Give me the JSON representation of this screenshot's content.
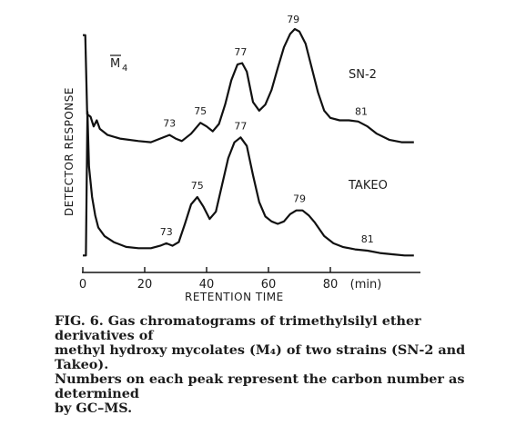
{
  "chart_data": {
    "type": "line",
    "xlabel": "RETENTION TIME",
    "x_unit": "(min)",
    "ylabel": "DETECTOR RESPONSE",
    "panel_label_main": "M",
    "panel_label_sub": "4",
    "xticks": [
      0,
      20,
      40,
      60,
      80
    ],
    "xlim": [
      0,
      107
    ],
    "series": [
      {
        "name": "SN-2",
        "peaks": [
          {
            "label": "73",
            "x": 28
          },
          {
            "label": "75",
            "x": 38
          },
          {
            "label": "77",
            "x": 51
          },
          {
            "label": "79",
            "x": 68
          },
          {
            "label": "81",
            "x": 90
          }
        ],
        "points": [
          [
            0,
            0.95
          ],
          [
            0.8,
            0.95
          ],
          [
            1.4,
            0.3
          ],
          [
            2.5,
            0.28
          ],
          [
            3.5,
            0.2
          ],
          [
            4.5,
            0.25
          ],
          [
            5.5,
            0.18
          ],
          [
            8,
            0.13
          ],
          [
            12,
            0.1
          ],
          [
            18,
            0.08
          ],
          [
            22,
            0.07
          ],
          [
            25,
            0.1
          ],
          [
            28,
            0.13
          ],
          [
            30,
            0.1
          ],
          [
            32,
            0.08
          ],
          [
            35,
            0.14
          ],
          [
            38,
            0.23
          ],
          [
            40,
            0.2
          ],
          [
            42,
            0.16
          ],
          [
            44,
            0.22
          ],
          [
            46,
            0.38
          ],
          [
            48,
            0.58
          ],
          [
            50,
            0.71
          ],
          [
            51.5,
            0.72
          ],
          [
            53,
            0.65
          ],
          [
            55,
            0.4
          ],
          [
            57,
            0.33
          ],
          [
            59,
            0.38
          ],
          [
            61,
            0.5
          ],
          [
            63,
            0.68
          ],
          [
            65,
            0.85
          ],
          [
            67,
            0.96
          ],
          [
            68.5,
            1.0
          ],
          [
            70,
            0.98
          ],
          [
            72,
            0.88
          ],
          [
            74,
            0.68
          ],
          [
            76,
            0.48
          ],
          [
            78,
            0.33
          ],
          [
            80,
            0.27
          ],
          [
            83,
            0.25
          ],
          [
            86,
            0.25
          ],
          [
            89,
            0.24
          ],
          [
            92,
            0.2
          ],
          [
            95,
            0.14
          ],
          [
            99,
            0.09
          ],
          [
            103,
            0.07
          ],
          [
            107,
            0.07
          ]
        ]
      },
      {
        "name": "TAKEO",
        "peaks": [
          {
            "label": "73",
            "x": 27
          },
          {
            "label": "75",
            "x": 37
          },
          {
            "label": "77",
            "x": 51
          },
          {
            "label": "79",
            "x": 70
          },
          {
            "label": "81",
            "x": 92
          }
        ],
        "points": [
          [
            0,
            0.02
          ],
          [
            1.0,
            0.02
          ],
          [
            1.5,
            1.2
          ],
          [
            2.0,
            0.75
          ],
          [
            3,
            0.5
          ],
          [
            4,
            0.35
          ],
          [
            5,
            0.25
          ],
          [
            7,
            0.18
          ],
          [
            10,
            0.13
          ],
          [
            14,
            0.09
          ],
          [
            18,
            0.08
          ],
          [
            22,
            0.08
          ],
          [
            25,
            0.1
          ],
          [
            27,
            0.12
          ],
          [
            29,
            0.1
          ],
          [
            31,
            0.13
          ],
          [
            33,
            0.28
          ],
          [
            35,
            0.44
          ],
          [
            37,
            0.5
          ],
          [
            39,
            0.42
          ],
          [
            41,
            0.32
          ],
          [
            43,
            0.38
          ],
          [
            45,
            0.6
          ],
          [
            47,
            0.82
          ],
          [
            49,
            0.95
          ],
          [
            51,
            0.99
          ],
          [
            53,
            0.92
          ],
          [
            55,
            0.68
          ],
          [
            57,
            0.46
          ],
          [
            59,
            0.34
          ],
          [
            61,
            0.3
          ],
          [
            63,
            0.28
          ],
          [
            65,
            0.3
          ],
          [
            67,
            0.36
          ],
          [
            69,
            0.39
          ],
          [
            71,
            0.39
          ],
          [
            73,
            0.35
          ],
          [
            75,
            0.29
          ],
          [
            78,
            0.18
          ],
          [
            81,
            0.12
          ],
          [
            84,
            0.09
          ],
          [
            88,
            0.07
          ],
          [
            92,
            0.06
          ],
          [
            96,
            0.04
          ],
          [
            100,
            0.03
          ],
          [
            104,
            0.02
          ],
          [
            107,
            0.02
          ]
        ]
      }
    ]
  },
  "caption": {
    "lines": [
      "FIG. 6. Gas chromatograms of trimethylsilyl ether derivatives of",
      "methyl hydroxy mycolates (M₄) of two strains (SN-2 and Takeo).",
      "Numbers on each peak represent the carbon number as determined",
      "by GC–MS."
    ]
  }
}
